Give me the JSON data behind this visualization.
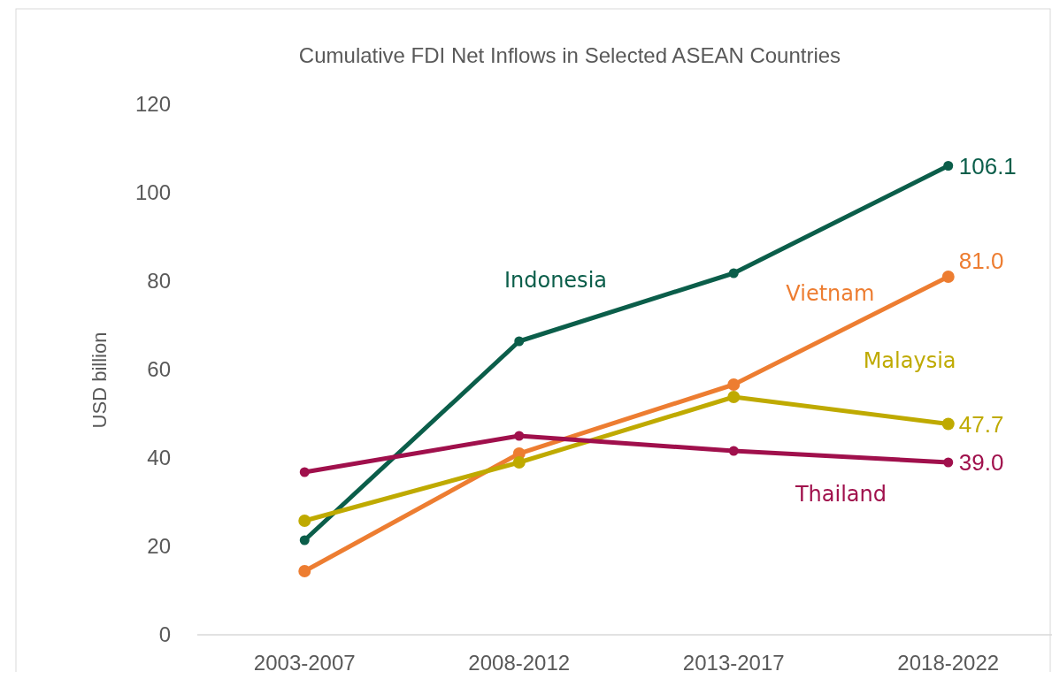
{
  "chart_data": {
    "type": "line",
    "title": "Cumulative FDI Net Inflows in Selected ASEAN Countries",
    "ylabel": "USD billion",
    "categories": [
      "2003-2007",
      "2008-2012",
      "2013-2017",
      "2018-2022"
    ],
    "ylim": [
      0,
      120
    ],
    "yticks": [
      0,
      20,
      40,
      60,
      80,
      100,
      120
    ],
    "grid": false,
    "legend": false,
    "marker": "circle",
    "line_style": "solid",
    "series": [
      {
        "name": "Indonesia",
        "color": "#0b5e4a",
        "values": [
          21.4,
          66.4,
          81.8,
          106.1
        ],
        "value_labels": [
          null,
          null,
          null,
          "106.1"
        ]
      },
      {
        "name": "Vietnam",
        "color": "#ed7d31",
        "values": [
          14.4,
          41.0,
          56.6,
          81.0
        ],
        "value_labels": [
          null,
          null,
          null,
          "81.0"
        ]
      },
      {
        "name": "Malaysia",
        "color": "#bfaa00",
        "values": [
          25.8,
          39.0,
          53.8,
          47.7
        ],
        "value_labels": [
          null,
          null,
          null,
          "47.7"
        ]
      },
      {
        "name": "Thailand",
        "color": "#a0104c",
        "values": [
          36.8,
          45.0,
          41.6,
          39.0
        ],
        "value_labels": [
          null,
          null,
          null,
          "39.0"
        ]
      }
    ]
  }
}
